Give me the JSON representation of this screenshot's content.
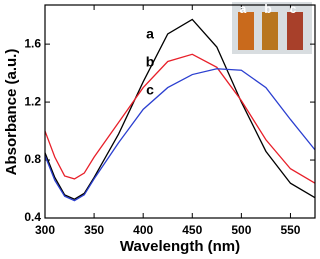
{
  "chart_data": {
    "type": "line",
    "xlabel": "Wavelength (nm)",
    "ylabel": "Absorbance (a.u.)",
    "x": [
      300,
      310,
      320,
      330,
      340,
      350,
      375,
      400,
      425,
      450,
      475,
      500,
      525,
      550,
      575
    ],
    "series": [
      {
        "name": "a",
        "color": "#000000",
        "values": [
          0.85,
          0.68,
          0.56,
          0.53,
          0.57,
          0.68,
          0.98,
          1.34,
          1.67,
          1.77,
          1.58,
          1.2,
          0.86,
          0.64,
          0.54
        ]
      },
      {
        "name": "b",
        "color": "#e8202a",
        "values": [
          1.0,
          0.82,
          0.69,
          0.67,
          0.71,
          0.82,
          1.06,
          1.3,
          1.48,
          1.53,
          1.44,
          1.21,
          0.94,
          0.74,
          0.64
        ]
      },
      {
        "name": "c",
        "color": "#2b3fd0",
        "values": [
          0.83,
          0.66,
          0.55,
          0.52,
          0.56,
          0.67,
          0.92,
          1.15,
          1.3,
          1.39,
          1.43,
          1.42,
          1.3,
          1.08,
          0.87
        ]
      }
    ],
    "xlim": [
      300,
      575
    ],
    "xticks": [
      300,
      350,
      400,
      450,
      500,
      550
    ],
    "ylim": [
      0.4,
      1.87
    ],
    "yticks": [
      0.4,
      0.8,
      1.2,
      1.6
    ],
    "inset": {
      "labels": [
        "a",
        "b",
        "c"
      ]
    }
  }
}
